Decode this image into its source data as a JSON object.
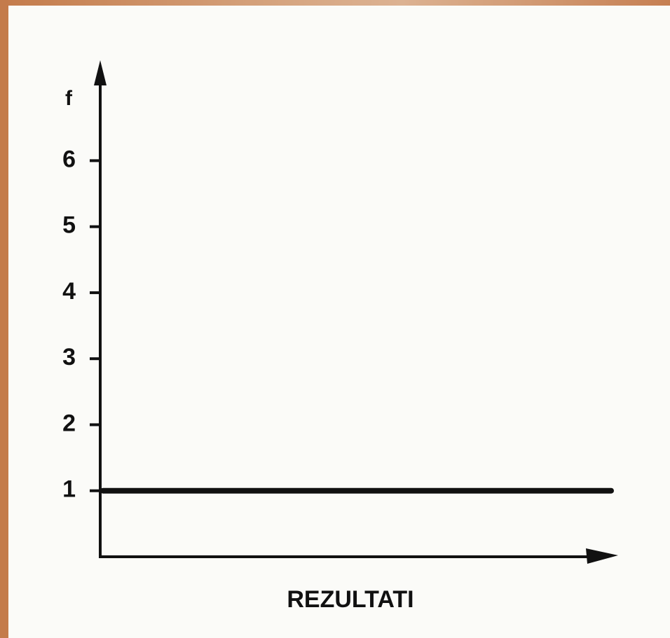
{
  "chart_data": {
    "type": "line",
    "ylabel": "f",
    "xlabel": "REZULTATI",
    "categories": [
      null,
      null
    ],
    "values": [
      1,
      1
    ],
    "color": "#111111",
    "ylim": [
      0,
      7.5
    ],
    "yticks": [
      1,
      2,
      3,
      4,
      5,
      6
    ]
  }
}
